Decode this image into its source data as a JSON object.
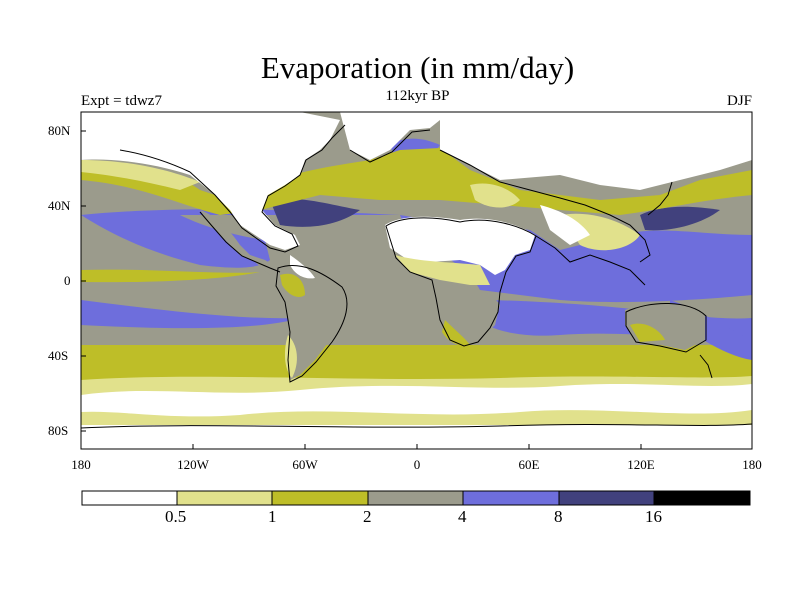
{
  "title": "Evaporation (in mm/day)",
  "subtitle": "112kyr BP",
  "left_label": "Expt = tdwz7",
  "right_label": "DJF",
  "lon_ticks": [
    "180",
    "120W",
    "60W",
    "0",
    "60E",
    "120E",
    "180"
  ],
  "lat_ticks": [
    "80N",
    "40N",
    "0",
    "40S",
    "80S"
  ],
  "colorbar": {
    "labels": [
      "0.5",
      "1",
      "2",
      "4",
      "8",
      "16"
    ],
    "colors": [
      "#ffffff",
      "#e1e18c",
      "#bebe28",
      "#9b9b8c",
      "#6e6edc",
      "#41417d",
      "#000000"
    ]
  }
}
